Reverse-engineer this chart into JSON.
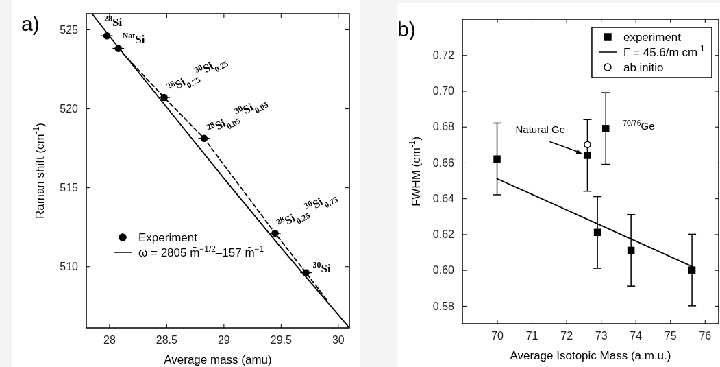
{
  "chart_data": [
    {
      "type": "scatter",
      "title": "a)",
      "xlabel": "Average mass (amu)",
      "ylabel": "Raman shift (cm$^{-1}$)",
      "xlim": [
        27.8,
        30.1
      ],
      "xticks": [
        28,
        28.5,
        29,
        29.5,
        30
      ],
      "ylim": [
        506.1,
        526
      ],
      "yticks": [
        510,
        515,
        520,
        525
      ],
      "legend": "bottom left",
      "series": [
        {
          "name": "Experiment",
          "type": "scatter",
          "marker": "circle",
          "color": "#000000",
          "x": [
            27.98,
            28.08,
            28.48,
            28.83,
            29.45,
            29.72
          ],
          "values": [
            524.6,
            523.8,
            520.7,
            518.1,
            512.1,
            509.6
          ],
          "xerrors": [
            0.05,
            0.05,
            0.05,
            0.05,
            0.05,
            0.05
          ]
        },
        {
          "name": "ω = 2805 m̄$^{−1/2}$–157 m̄$^{−1}$",
          "type": "line",
          "line_style": "solid",
          "color": "#000000",
          "x": [
            27.85,
            28,
            28.5,
            29,
            29.5,
            30.1
          ],
          "values": [
            526.0,
            524.6,
            520.1,
            515.6,
            511.2,
            506.1
          ]
        },
        {
          "type": "line",
          "line_style": "dashed",
          "color": "#000000",
          "x": [
            28.08,
            28.48,
            28.83,
            29.45,
            29.72,
            29.9
          ],
          "values": [
            523.8,
            520.7,
            518.1,
            512.1,
            509.6,
            507.9
          ]
        }
      ],
      "annotations": [
        {
          "text": "$^{28}$Si",
          "x": 27.98,
          "y": 524.6
        },
        {
          "text": "$^{Nat}$Si",
          "x": 28.08,
          "y": 523.8
        },
        {
          "text": "$^{28}$Si$_{0.75}$$^{30}$Si$_{0.25}$",
          "x": 28.48,
          "y": 520.7
        },
        {
          "text": "$^{28}$Si$_{0.05}$$^{30}$Si$_{0.05}$",
          "x": 28.83,
          "y": 518.1
        },
        {
          "text": "$^{28}$Si$_{0.25}$$^{30}$Si$_{0.75}$",
          "x": 29.45,
          "y": 512.1
        },
        {
          "text": "$^{30}$Si",
          "x": 29.72,
          "y": 509.6
        }
      ]
    },
    {
      "type": "scatter",
      "title": "b)",
      "xlabel": "Average Isotopic Mass (a.m.u.)",
      "ylabel": "FWHM (cm$^{-1}$)",
      "xlim": [
        69,
        76.4
      ],
      "xticks": [
        70,
        71,
        72,
        73,
        74,
        75,
        76
      ],
      "ylim": [
        0.57,
        0.74
      ],
      "yticks": [
        0.58,
        {
          "value": 0.6,
          "label": "0.60"
        },
        0.62,
        0.64,
        0.66,
        0.68,
        {
          "value": 0.7,
          "label": "0.70"
        },
        0.72
      ],
      "legend": "top right",
      "series": [
        {
          "name": "experiment",
          "type": "scatter",
          "marker": "square",
          "color": "#000000",
          "x": [
            70,
            72.61,
            72.9,
            73.14,
            73.87,
            75.63
          ],
          "values": [
            0.662,
            0.664,
            0.621,
            0.679,
            0.611,
            0.6
          ],
          "errors": [
            0.02,
            0.02,
            0.02,
            0.02,
            0.02,
            0.02
          ]
        },
        {
          "name": "Γ = 45.6/m cm$^{-1}$",
          "type": "line",
          "line_style": "solid",
          "color": "#000000",
          "x": [
            70,
            75.63
          ],
          "values": [
            0.651,
            0.602
          ]
        },
        {
          "name": "ab initio",
          "type": "scatter",
          "marker": "circle",
          "color": "#ffffff",
          "x": [
            72.61
          ],
          "values": [
            0.67
          ]
        }
      ],
      "annotations": [
        {
          "text": "Natural Ge",
          "x": 72.61,
          "y": 0.664
        },
        {
          "text": "$^{70/76}$Ge",
          "x": 73.14,
          "y": 0.679
        }
      ]
    }
  ]
}
